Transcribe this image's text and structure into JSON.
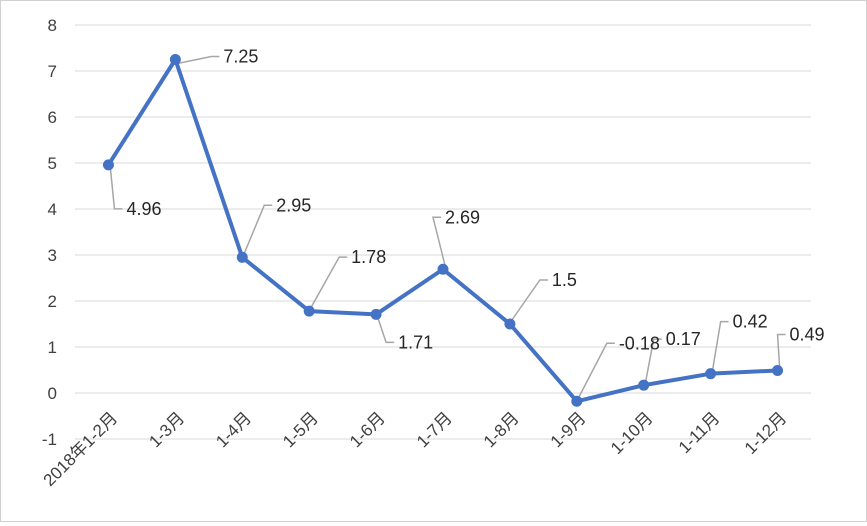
{
  "chart_data": {
    "type": "line",
    "title": "",
    "xlabel": "",
    "ylabel": "",
    "categories": [
      "2018年1-2月",
      "1-3月",
      "1-4月",
      "1-5月",
      "1-6月",
      "1-7月",
      "1-8月",
      "1-9月",
      "1-10月",
      "1-11月",
      "1-12月"
    ],
    "series": [
      {
        "values": [
          4.96,
          7.25,
          2.95,
          1.78,
          1.71,
          2.69,
          1.5,
          -0.18,
          0.17,
          0.42,
          0.49
        ],
        "labels": [
          "4.96",
          "7.25",
          "2.95",
          "1.78",
          "1.71",
          "2.69",
          "1.5",
          "-0.18",
          "0.17",
          "0.42",
          "0.49"
        ],
        "color": "#4472c4"
      }
    ],
    "ylim": [
      -1,
      8
    ],
    "yticks": [
      "-1",
      "0",
      "1",
      "2",
      "3",
      "4",
      "5",
      "6",
      "7",
      "8"
    ],
    "grid": true,
    "legend": "none",
    "gridline_color": "#d9d9d9",
    "leader_line_color": "#a6a6a6"
  }
}
